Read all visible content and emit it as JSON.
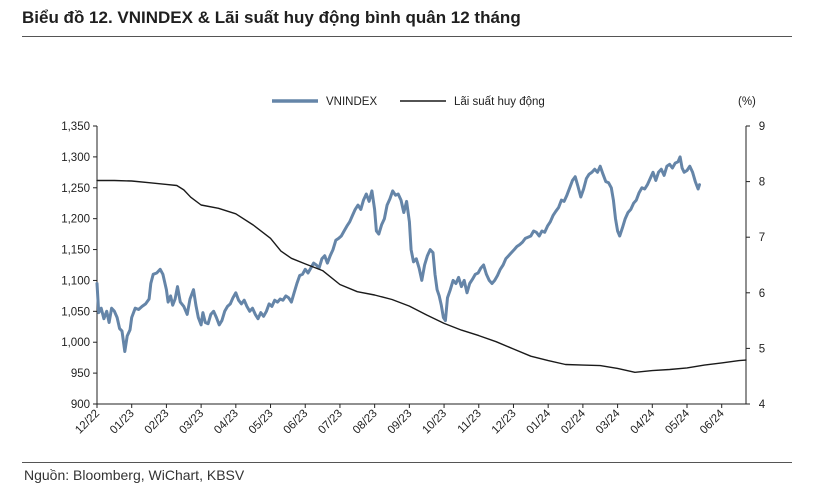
{
  "title": "Biểu đồ 12. VNINDEX & Lãi suất huy động bình quân 12 tháng",
  "source": "Nguồn: Bloomberg, WiChart, KBSV",
  "colors": {
    "vnindex": "#6585a8",
    "rate": "#1a1a1a",
    "axis": "#222222"
  },
  "chart_data": {
    "type": "line",
    "legend": {
      "placement": "top",
      "entries": [
        "VNINDEX",
        "Lãi suất huy động"
      ]
    },
    "x_tick_labels": [
      "12/22",
      "01/23",
      "02/23",
      "03/23",
      "04/23",
      "05/23",
      "06/23",
      "07/23",
      "08/23",
      "09/23",
      "10/23",
      "11/23",
      "12/23",
      "01/24",
      "02/24",
      "03/24",
      "04/24",
      "05/24",
      "06/24"
    ],
    "y_left": {
      "ticks": [
        "900",
        "950",
        "1,000",
        "1,050",
        "1,100",
        "1,150",
        "1,200",
        "1,250",
        "1,300",
        "1,350"
      ],
      "range": [
        900,
        1350
      ]
    },
    "y_right": {
      "unit": "(%)",
      "ticks": [
        "4",
        "5",
        "6",
        "7",
        "8",
        "9"
      ],
      "range": [
        4,
        9
      ]
    },
    "x_range": [
      0,
      18.7
    ],
    "series": [
      {
        "name": "VNINDEX",
        "axis": "left",
        "points": [
          [
            0,
            1095
          ],
          [
            0.05,
            1048
          ],
          [
            0.12,
            1055
          ],
          [
            0.2,
            1038
          ],
          [
            0.28,
            1050
          ],
          [
            0.35,
            1032
          ],
          [
            0.42,
            1055
          ],
          [
            0.5,
            1050
          ],
          [
            0.58,
            1040
          ],
          [
            0.65,
            1022
          ],
          [
            0.72,
            1018
          ],
          [
            0.8,
            985
          ],
          [
            0.87,
            1010
          ],
          [
            0.95,
            1020
          ],
          [
            1.0,
            1040
          ],
          [
            1.1,
            1055
          ],
          [
            1.2,
            1053
          ],
          [
            1.3,
            1058
          ],
          [
            1.4,
            1062
          ],
          [
            1.5,
            1070
          ],
          [
            1.55,
            1095
          ],
          [
            1.62,
            1110
          ],
          [
            1.72,
            1112
          ],
          [
            1.82,
            1118
          ],
          [
            1.9,
            1110
          ],
          [
            2.0,
            1085
          ],
          [
            2.05,
            1065
          ],
          [
            2.12,
            1075
          ],
          [
            2.18,
            1060
          ],
          [
            2.25,
            1070
          ],
          [
            2.32,
            1090
          ],
          [
            2.4,
            1065
          ],
          [
            2.5,
            1058
          ],
          [
            2.6,
            1045
          ],
          [
            2.68,
            1070
          ],
          [
            2.78,
            1085
          ],
          [
            2.85,
            1060
          ],
          [
            2.92,
            1040
          ],
          [
            3.0,
            1028
          ],
          [
            3.05,
            1048
          ],
          [
            3.12,
            1032
          ],
          [
            3.2,
            1030
          ],
          [
            3.28,
            1045
          ],
          [
            3.36,
            1050
          ],
          [
            3.44,
            1040
          ],
          [
            3.52,
            1028
          ],
          [
            3.6,
            1035
          ],
          [
            3.68,
            1050
          ],
          [
            3.76,
            1058
          ],
          [
            3.84,
            1062
          ],
          [
            3.92,
            1072
          ],
          [
            4.0,
            1080
          ],
          [
            4.08,
            1068
          ],
          [
            4.16,
            1062
          ],
          [
            4.24,
            1068
          ],
          [
            4.32,
            1058
          ],
          [
            4.4,
            1050
          ],
          [
            4.48,
            1055
          ],
          [
            4.56,
            1045
          ],
          [
            4.64,
            1038
          ],
          [
            4.72,
            1048
          ],
          [
            4.8,
            1042
          ],
          [
            4.88,
            1050
          ],
          [
            4.96,
            1062
          ],
          [
            5.04,
            1058
          ],
          [
            5.12,
            1068
          ],
          [
            5.2,
            1065
          ],
          [
            5.28,
            1070
          ],
          [
            5.36,
            1068
          ],
          [
            5.44,
            1075
          ],
          [
            5.52,
            1072
          ],
          [
            5.6,
            1065
          ],
          [
            5.68,
            1080
          ],
          [
            5.76,
            1095
          ],
          [
            5.84,
            1108
          ],
          [
            5.92,
            1110
          ],
          [
            6.0,
            1118
          ],
          [
            6.08,
            1112
          ],
          [
            6.16,
            1120
          ],
          [
            6.24,
            1128
          ],
          [
            6.32,
            1125
          ],
          [
            6.4,
            1120
          ],
          [
            6.48,
            1135
          ],
          [
            6.56,
            1140
          ],
          [
            6.64,
            1128
          ],
          [
            6.72,
            1140
          ],
          [
            6.8,
            1150
          ],
          [
            6.88,
            1165
          ],
          [
            6.96,
            1168
          ],
          [
            7.04,
            1172
          ],
          [
            7.12,
            1180
          ],
          [
            7.2,
            1188
          ],
          [
            7.28,
            1195
          ],
          [
            7.36,
            1205
          ],
          [
            7.44,
            1215
          ],
          [
            7.52,
            1222
          ],
          [
            7.6,
            1215
          ],
          [
            7.68,
            1230
          ],
          [
            7.76,
            1240
          ],
          [
            7.84,
            1228
          ],
          [
            7.92,
            1245
          ],
          [
            8.0,
            1215
          ],
          [
            8.05,
            1180
          ],
          [
            8.12,
            1175
          ],
          [
            8.2,
            1190
          ],
          [
            8.28,
            1200
          ],
          [
            8.36,
            1222
          ],
          [
            8.44,
            1232
          ],
          [
            8.52,
            1245
          ],
          [
            8.6,
            1238
          ],
          [
            8.68,
            1240
          ],
          [
            8.76,
            1230
          ],
          [
            8.84,
            1210
          ],
          [
            8.92,
            1228
          ],
          [
            9.0,
            1195
          ],
          [
            9.05,
            1150
          ],
          [
            9.12,
            1130
          ],
          [
            9.2,
            1135
          ],
          [
            9.28,
            1120
          ],
          [
            9.36,
            1100
          ],
          [
            9.44,
            1125
          ],
          [
            9.52,
            1140
          ],
          [
            9.6,
            1150
          ],
          [
            9.68,
            1145
          ],
          [
            9.74,
            1110
          ],
          [
            9.8,
            1085
          ],
          [
            9.86,
            1075
          ],
          [
            9.92,
            1060
          ],
          [
            9.98,
            1040
          ],
          [
            10.04,
            1035
          ],
          [
            10.1,
            1072
          ],
          [
            10.18,
            1085
          ],
          [
            10.26,
            1100
          ],
          [
            10.34,
            1095
          ],
          [
            10.42,
            1105
          ],
          [
            10.5,
            1090
          ],
          [
            10.58,
            1100
          ],
          [
            10.66,
            1080
          ],
          [
            10.74,
            1095
          ],
          [
            10.82,
            1102
          ],
          [
            10.9,
            1110
          ],
          [
            10.98,
            1112
          ],
          [
            11.06,
            1120
          ],
          [
            11.14,
            1125
          ],
          [
            11.22,
            1110
          ],
          [
            11.3,
            1100
          ],
          [
            11.38,
            1095
          ],
          [
            11.46,
            1100
          ],
          [
            11.54,
            1108
          ],
          [
            11.62,
            1118
          ],
          [
            11.7,
            1125
          ],
          [
            11.78,
            1135
          ],
          [
            11.86,
            1140
          ],
          [
            11.94,
            1145
          ],
          [
            12.02,
            1150
          ],
          [
            12.1,
            1155
          ],
          [
            12.18,
            1158
          ],
          [
            12.26,
            1162
          ],
          [
            12.34,
            1168
          ],
          [
            12.42,
            1170
          ],
          [
            12.5,
            1172
          ],
          [
            12.58,
            1180
          ],
          [
            12.66,
            1178
          ],
          [
            12.74,
            1172
          ],
          [
            12.82,
            1180
          ],
          [
            12.9,
            1178
          ],
          [
            12.98,
            1188
          ],
          [
            13.06,
            1195
          ],
          [
            13.14,
            1205
          ],
          [
            13.22,
            1212
          ],
          [
            13.3,
            1218
          ],
          [
            13.38,
            1230
          ],
          [
            13.46,
            1228
          ],
          [
            13.54,
            1238
          ],
          [
            13.62,
            1250
          ],
          [
            13.7,
            1262
          ],
          [
            13.78,
            1268
          ],
          [
            13.86,
            1252
          ],
          [
            13.94,
            1235
          ],
          [
            14.02,
            1248
          ],
          [
            14.1,
            1265
          ],
          [
            14.18,
            1272
          ],
          [
            14.26,
            1275
          ],
          [
            14.34,
            1280
          ],
          [
            14.42,
            1275
          ],
          [
            14.5,
            1285
          ],
          [
            14.58,
            1272
          ],
          [
            14.66,
            1260
          ],
          [
            14.74,
            1258
          ],
          [
            14.82,
            1250
          ],
          [
            14.88,
            1230
          ],
          [
            14.94,
            1200
          ],
          [
            15.0,
            1180
          ],
          [
            15.06,
            1172
          ],
          [
            15.14,
            1185
          ],
          [
            15.22,
            1200
          ],
          [
            15.3,
            1210
          ],
          [
            15.38,
            1215
          ],
          [
            15.46,
            1225
          ],
          [
            15.54,
            1230
          ],
          [
            15.62,
            1242
          ],
          [
            15.7,
            1250
          ],
          [
            15.78,
            1248
          ],
          [
            15.86,
            1255
          ],
          [
            15.94,
            1265
          ],
          [
            16.02,
            1275
          ],
          [
            16.1,
            1262
          ],
          [
            16.18,
            1275
          ],
          [
            16.26,
            1280
          ],
          [
            16.34,
            1270
          ],
          [
            16.42,
            1285
          ],
          [
            16.5,
            1288
          ],
          [
            16.58,
            1282
          ],
          [
            16.66,
            1290
          ],
          [
            16.74,
            1292
          ],
          [
            16.8,
            1300
          ],
          [
            16.86,
            1282
          ],
          [
            16.92,
            1275
          ],
          [
            17.0,
            1278
          ],
          [
            17.08,
            1285
          ],
          [
            17.16,
            1275
          ],
          [
            17.24,
            1260
          ],
          [
            17.32,
            1248
          ],
          [
            17.36,
            1255
          ]
        ]
      },
      {
        "name": "Lãi suất huy động",
        "axis": "right",
        "points": [
          [
            0,
            8.02
          ],
          [
            0.5,
            8.02
          ],
          [
            1.0,
            8.01
          ],
          [
            1.5,
            7.98
          ],
          [
            2.0,
            7.95
          ],
          [
            2.3,
            7.93
          ],
          [
            2.5,
            7.85
          ],
          [
            2.7,
            7.72
          ],
          [
            3.0,
            7.58
          ],
          [
            3.5,
            7.52
          ],
          [
            4.0,
            7.42
          ],
          [
            4.5,
            7.22
          ],
          [
            5.0,
            6.98
          ],
          [
            5.3,
            6.75
          ],
          [
            5.6,
            6.62
          ],
          [
            6.0,
            6.52
          ],
          [
            6.5,
            6.4
          ],
          [
            7.0,
            6.15
          ],
          [
            7.5,
            6.02
          ],
          [
            8.0,
            5.96
          ],
          [
            8.5,
            5.88
          ],
          [
            9.0,
            5.76
          ],
          [
            9.5,
            5.6
          ],
          [
            10.0,
            5.45
          ],
          [
            10.5,
            5.33
          ],
          [
            11.0,
            5.23
          ],
          [
            11.5,
            5.12
          ],
          [
            12.0,
            4.99
          ],
          [
            12.5,
            4.86
          ],
          [
            13.0,
            4.78
          ],
          [
            13.5,
            4.71
          ],
          [
            14.0,
            4.7
          ],
          [
            14.5,
            4.69
          ],
          [
            15.0,
            4.64
          ],
          [
            15.5,
            4.57
          ],
          [
            16.0,
            4.6
          ],
          [
            16.5,
            4.62
          ],
          [
            17.0,
            4.65
          ],
          [
            17.5,
            4.7
          ],
          [
            18.0,
            4.74
          ],
          [
            18.5,
            4.78
          ],
          [
            18.7,
            4.79
          ]
        ]
      }
    ]
  }
}
